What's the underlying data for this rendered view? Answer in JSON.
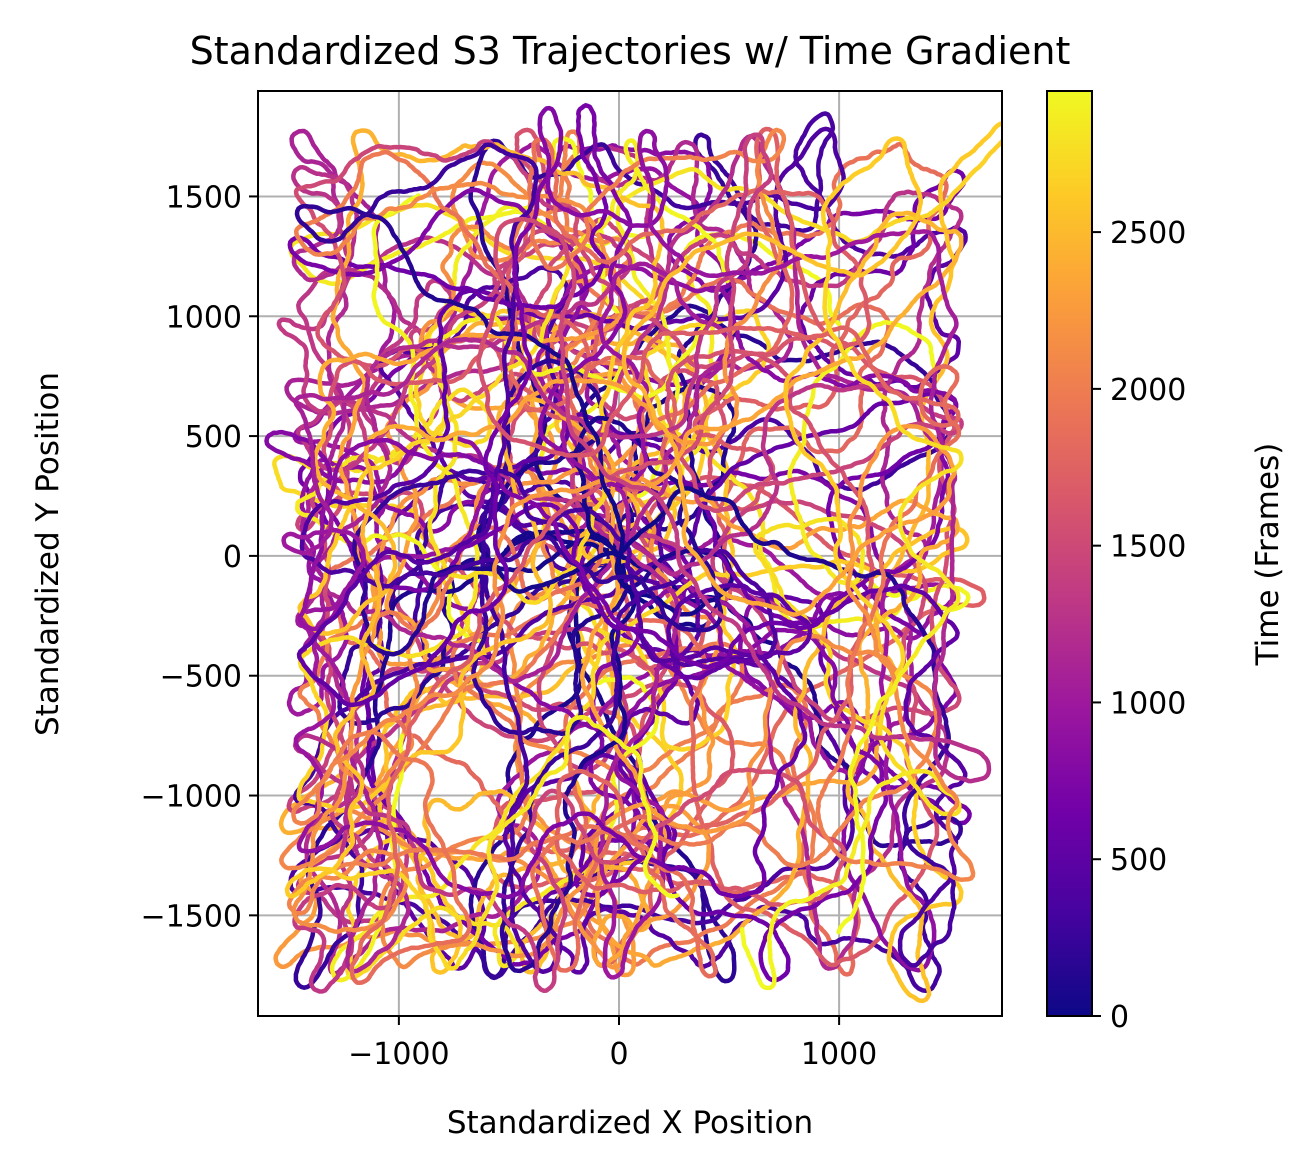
{
  "chart_data": {
    "type": "scatter",
    "title": "Standardized S3 Trajectories w/ Time Gradient",
    "xlabel": "Standardized X Position",
    "ylabel": "Standardized Y Position",
    "xlim": [
      -1640,
      1740
    ],
    "ylim": [
      -1920,
      1940
    ],
    "xticks": [
      -1000,
      0,
      1000
    ],
    "xtick_labels": [
      "−1000",
      "0",
      "1000"
    ],
    "yticks": [
      -1500,
      -1000,
      -500,
      0,
      500,
      1000,
      1500
    ],
    "ytick_labels": [
      "−1500",
      "−1000",
      "−500",
      "0",
      "500",
      "1000",
      "1500"
    ],
    "grid": true,
    "colormap": "plasma",
    "colorbar": {
      "label": "Time (Frames)",
      "range": [
        0,
        2950
      ],
      "ticks": [
        0,
        500,
        1000,
        1500,
        2000,
        2500
      ],
      "tick_labels": [
        "0",
        "500",
        "1000",
        "1500",
        "2000",
        "2500"
      ]
    },
    "series_summary": {
      "description": "Many random-walk trajectories starting near the origin and spreading outward over time",
      "start_point": [
        0,
        0
      ],
      "frames_per_trajectory": 2950,
      "x_extent": [
        -1500,
        1580
      ],
      "y_extent": [
        -1760,
        1770
      ]
    },
    "colors": {
      "grid": "#b0b0b0",
      "axes": "#000000",
      "plasma_stops": [
        "#0d0887",
        "#46039f",
        "#7201a8",
        "#9c179e",
        "#bd3786",
        "#d8576b",
        "#ed7953",
        "#fb9f3a",
        "#fdca26",
        "#f0f921"
      ]
    }
  }
}
